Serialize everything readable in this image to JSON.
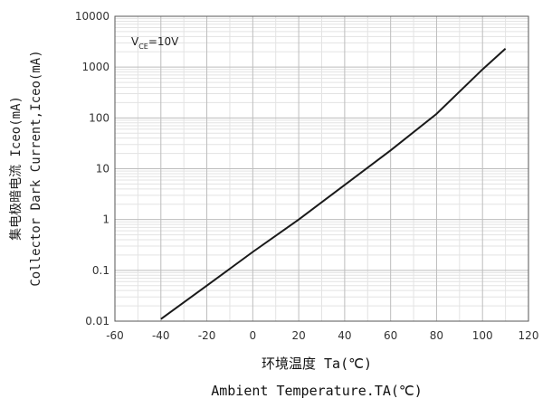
{
  "chart_data": {
    "type": "line",
    "title": "",
    "xlabel_cn": "环境温度 Ta(℃)",
    "xlabel_en": "Ambient Temperature.TA(℃)",
    "ylabel_cn": "集电极暗电流 Iceo(mA)",
    "ylabel_en": "Collector Dark Current,Iceo(mA)",
    "annotation": {
      "main": "V",
      "sub": "CE",
      "tail": "=10V"
    },
    "xlim": [
      -60,
      120
    ],
    "ylim": [
      0.01,
      10000
    ],
    "yscale": "log",
    "x_ticks": [
      -60,
      -40,
      -20,
      0,
      20,
      40,
      60,
      80,
      100,
      120
    ],
    "x_tick_labels": [
      "-60",
      "-40",
      "-20",
      "0",
      "20",
      "40",
      "60",
      "80",
      "100",
      "120"
    ],
    "y_ticks": [
      0.01,
      0.1,
      1,
      10,
      100,
      1000,
      10000
    ],
    "y_tick_labels": [
      "0.01",
      "0.1",
      "1",
      "10",
      "100",
      "1000",
      "10000"
    ],
    "grid": true,
    "series": [
      {
        "x": [
          -40,
          -20,
          0,
          20,
          40,
          60,
          80,
          100,
          110
        ],
        "y": [
          0.011,
          0.05,
          0.23,
          1.0,
          4.8,
          23,
          120,
          900,
          2300
        ]
      }
    ],
    "line_color": "#1a1a1a",
    "grid_major_color": "#bdbdbd",
    "grid_minor_color": "#e3e3e3",
    "axes_color": "#555555"
  }
}
